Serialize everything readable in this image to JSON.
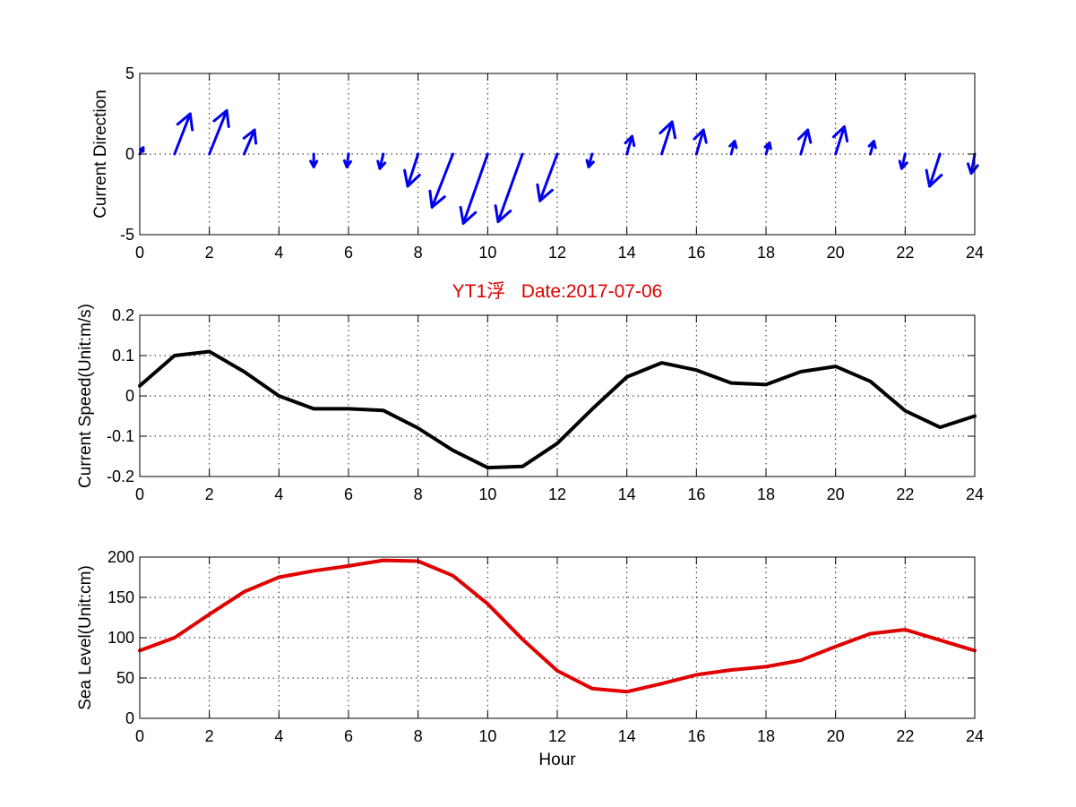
{
  "title": "YT1浮   Date:2017-07-06",
  "chart_data": [
    {
      "type": "quiver",
      "ylabel": "Current Direction",
      "xlabel": "",
      "xlim": [
        0,
        24
      ],
      "ylim": [
        -5,
        5
      ],
      "xticks": [
        "0",
        "2",
        "4",
        "6",
        "8",
        "10",
        "12",
        "14",
        "16",
        "18",
        "20",
        "22",
        "24"
      ],
      "yticks": [
        "-5",
        "0",
        "5"
      ],
      "grid": true,
      "color": "#0000ee",
      "arrows": [
        {
          "x": 0,
          "u": 0.1,
          "v": 0.4
        },
        {
          "x": 1,
          "u": 0.45,
          "v": 2.5
        },
        {
          "x": 2,
          "u": 0.5,
          "v": 2.7
        },
        {
          "x": 3,
          "u": 0.3,
          "v": 1.5
        },
        {
          "x": 5,
          "u": 0.0,
          "v": -0.8
        },
        {
          "x": 6,
          "u": -0.05,
          "v": -0.8
        },
        {
          "x": 7,
          "u": -0.1,
          "v": -0.9
        },
        {
          "x": 8,
          "u": -0.3,
          "v": -2.0
        },
        {
          "x": 9,
          "u": -0.6,
          "v": -3.3
        },
        {
          "x": 10,
          "u": -0.7,
          "v": -4.3
        },
        {
          "x": 11,
          "u": -0.7,
          "v": -4.2
        },
        {
          "x": 12,
          "u": -0.5,
          "v": -2.9
        },
        {
          "x": 13,
          "u": -0.1,
          "v": -0.8
        },
        {
          "x": 14,
          "u": 0.15,
          "v": 1.1
        },
        {
          "x": 15,
          "u": 0.3,
          "v": 2.0
        },
        {
          "x": 16,
          "u": 0.2,
          "v": 1.5
        },
        {
          "x": 17,
          "u": 0.1,
          "v": 0.8
        },
        {
          "x": 18,
          "u": 0.1,
          "v": 0.7
        },
        {
          "x": 19,
          "u": 0.2,
          "v": 1.5
        },
        {
          "x": 20,
          "u": 0.25,
          "v": 1.7
        },
        {
          "x": 21,
          "u": 0.1,
          "v": 0.8
        },
        {
          "x": 22,
          "u": -0.1,
          "v": -0.9
        },
        {
          "x": 23,
          "u": -0.3,
          "v": -2.0
        },
        {
          "x": 24,
          "u": -0.1,
          "v": -1.2
        }
      ]
    },
    {
      "type": "line",
      "ylabel": "Current Speed(Unit:m/s)",
      "xlabel": "",
      "xlim": [
        0,
        24
      ],
      "ylim": [
        -0.2,
        0.2
      ],
      "xticks": [
        "0",
        "2",
        "4",
        "6",
        "8",
        "10",
        "12",
        "14",
        "16",
        "18",
        "20",
        "22",
        "24"
      ],
      "yticks": [
        "-0.2",
        "-0.1",
        "0",
        "0.1",
        "0.2"
      ],
      "grid": true,
      "color": "#000000",
      "x": [
        0,
        1,
        2,
        3,
        4,
        5,
        6,
        7,
        8,
        9,
        10,
        11,
        12,
        13,
        14,
        15,
        16,
        17,
        18,
        19,
        20,
        21,
        22,
        23,
        24
      ],
      "values": [
        0.025,
        0.1,
        0.11,
        0.06,
        0.0,
        -0.032,
        -0.032,
        -0.036,
        -0.08,
        -0.135,
        -0.178,
        -0.175,
        -0.118,
        -0.033,
        0.047,
        0.082,
        0.064,
        0.032,
        0.028,
        0.06,
        0.073,
        0.036,
        -0.037,
        -0.078,
        -0.05
      ]
    },
    {
      "type": "line",
      "ylabel": "Sea Level(Unit:cm)",
      "xlabel": "Hour",
      "xlim": [
        0,
        24
      ],
      "ylim": [
        0,
        200
      ],
      "xticks": [
        "0",
        "2",
        "4",
        "6",
        "8",
        "10",
        "12",
        "14",
        "16",
        "18",
        "20",
        "22",
        "24"
      ],
      "yticks": [
        "0",
        "50",
        "100",
        "150",
        "200"
      ],
      "grid": true,
      "color": "#e00000",
      "x": [
        0,
        1,
        2,
        3,
        4,
        5,
        6,
        7,
        8,
        9,
        10,
        11,
        12,
        13,
        14,
        15,
        16,
        17,
        18,
        19,
        20,
        21,
        22,
        23,
        24
      ],
      "values": [
        84,
        100,
        129,
        157,
        175,
        183,
        189,
        196,
        195,
        177,
        142,
        98,
        59,
        37,
        33,
        43,
        54,
        60,
        64,
        72,
        89,
        105,
        110,
        97,
        84
      ]
    }
  ]
}
